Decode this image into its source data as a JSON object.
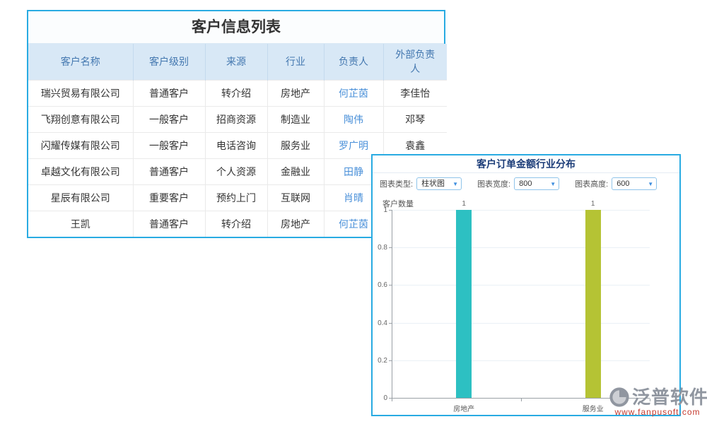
{
  "table": {
    "title": "客户信息列表",
    "columns": [
      "客户名称",
      "客户级别",
      "来源",
      "行业",
      "负责人",
      "外部负责人"
    ],
    "rows": [
      [
        "瑞兴贸易有限公司",
        "普通客户",
        "转介绍",
        "房地产",
        "何芷茵",
        "李佳怡"
      ],
      [
        "飞翔创意有限公司",
        "一般客户",
        "招商资源",
        "制造业",
        "陶伟",
        "邓琴"
      ],
      [
        "闪耀传媒有限公司",
        "一般客户",
        "电话咨询",
        "服务业",
        "罗广明",
        "袁鑫"
      ],
      [
        "卓越文化有限公司",
        "普通客户",
        "个人资源",
        "金融业",
        "田静",
        ""
      ],
      [
        "星辰有限公司",
        "重要客户",
        "预约上门",
        "互联网",
        "肖晴",
        ""
      ],
      [
        "王凯",
        "普通客户",
        "转介绍",
        "房地产",
        "何芷茵",
        ""
      ]
    ]
  },
  "panel": {
    "title": "客户订单金额行业分布",
    "controls": [
      {
        "label": "图表类型:",
        "value": "柱状图"
      },
      {
        "label": "图表宽度:",
        "value": "800"
      },
      {
        "label": "图表高度:",
        "value": "600"
      }
    ]
  },
  "chart_data": {
    "type": "bar",
    "title": "客户订单金额行业分布",
    "ylabel": "客户数量",
    "xlabel": "",
    "categories": [
      "房地产",
      "服务业"
    ],
    "values": [
      1,
      1
    ],
    "value_labels": [
      "1",
      "1"
    ],
    "bar_colors": [
      "#2DC0C2",
      "#B5C334"
    ],
    "ylim": [
      0,
      1
    ],
    "yticks": [
      0,
      0.2,
      0.4,
      0.6,
      0.8,
      1
    ],
    "grid": true,
    "legend": false
  },
  "watermark": {
    "brand": "泛普软件",
    "url": "www.fanpusoft.com"
  },
  "colors": {
    "accent_border": "#29ABE2",
    "table_header_bg": "#D8E8F6",
    "table_header_text": "#4478B0",
    "link_text": "#4A90D9",
    "panel_title_text": "#1B3C78",
    "bar_teal": "#2DC0C2",
    "bar_yellow_green": "#B5C334",
    "watermark_brand": "#9096A0",
    "watermark_url": "#C53B30"
  }
}
